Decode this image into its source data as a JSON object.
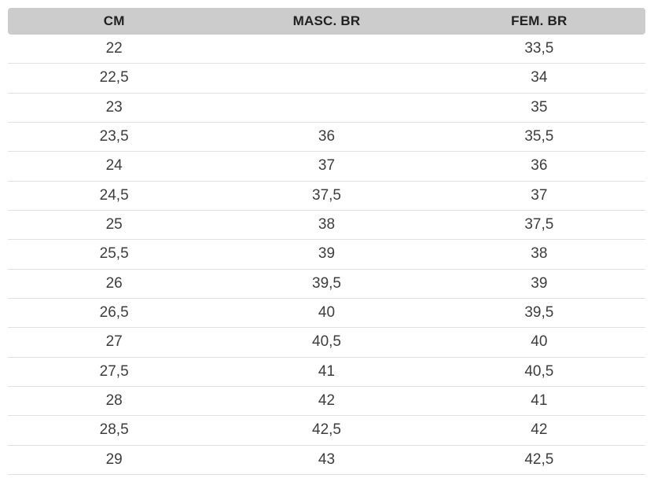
{
  "chart_data": {
    "type": "table",
    "columns": [
      "CM",
      "MASC. BR",
      "FEM. BR"
    ],
    "rows": [
      [
        "22",
        "",
        "33,5"
      ],
      [
        "22,5",
        "",
        "34"
      ],
      [
        "23",
        "",
        "35"
      ],
      [
        "23,5",
        "36",
        "35,5"
      ],
      [
        "24",
        "37",
        "36"
      ],
      [
        "24,5",
        "37,5",
        "37"
      ],
      [
        "25",
        "38",
        "37,5"
      ],
      [
        "25,5",
        "39",
        "38"
      ],
      [
        "26",
        "39,5",
        "39"
      ],
      [
        "26,5",
        "40",
        "39,5"
      ],
      [
        "27",
        "40,5",
        "40"
      ],
      [
        "27,5",
        "41",
        "40,5"
      ],
      [
        "28",
        "42",
        "41"
      ],
      [
        "28,5",
        "42,5",
        "42"
      ],
      [
        "29",
        "43",
        "42,5"
      ]
    ]
  },
  "colors": {
    "page_bg": "#ffffff",
    "header_bg": "#cccccc",
    "header_text": "#212121",
    "cell_text": "#3d3d3d",
    "divider": "#e0e0e0"
  }
}
